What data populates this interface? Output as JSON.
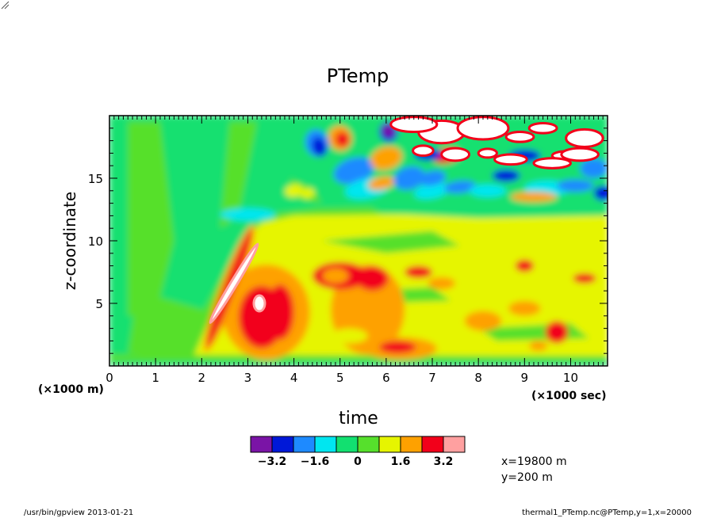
{
  "chart_data": {
    "type": "heatmap",
    "title": "PTemp",
    "xlabel": "time",
    "ylabel": "z-coordinate",
    "x_unit": "(×1000 sec)",
    "y_unit": "(×1000 m)",
    "xlim": [
      0,
      10.8
    ],
    "ylim": [
      0,
      20
    ],
    "x_ticks": [
      "0",
      "1",
      "2",
      "3",
      "4",
      "5",
      "6",
      "7",
      "8",
      "9",
      "10"
    ],
    "y_ticks": [
      "5",
      "10",
      "15"
    ],
    "colorbar": {
      "colors": [
        "#7a14a6",
        "#0018d8",
        "#1e8aff",
        "#00e6f0",
        "#12e070",
        "#56e02c",
        "#e6f500",
        "#fea100",
        "#f2001a",
        "#ffa0a0"
      ],
      "labels": [
        "−3.2",
        "−1.6",
        "0",
        "1.6",
        "3.2"
      ]
    },
    "annotation_lines": [
      "x=19800  m",
      "y=200  m"
    ]
  },
  "footer": {
    "left": "/usr/bin/gpview  2013-01-21",
    "right": "thermal1_PTemp.nc@PTemp,y=1,x=20000"
  }
}
